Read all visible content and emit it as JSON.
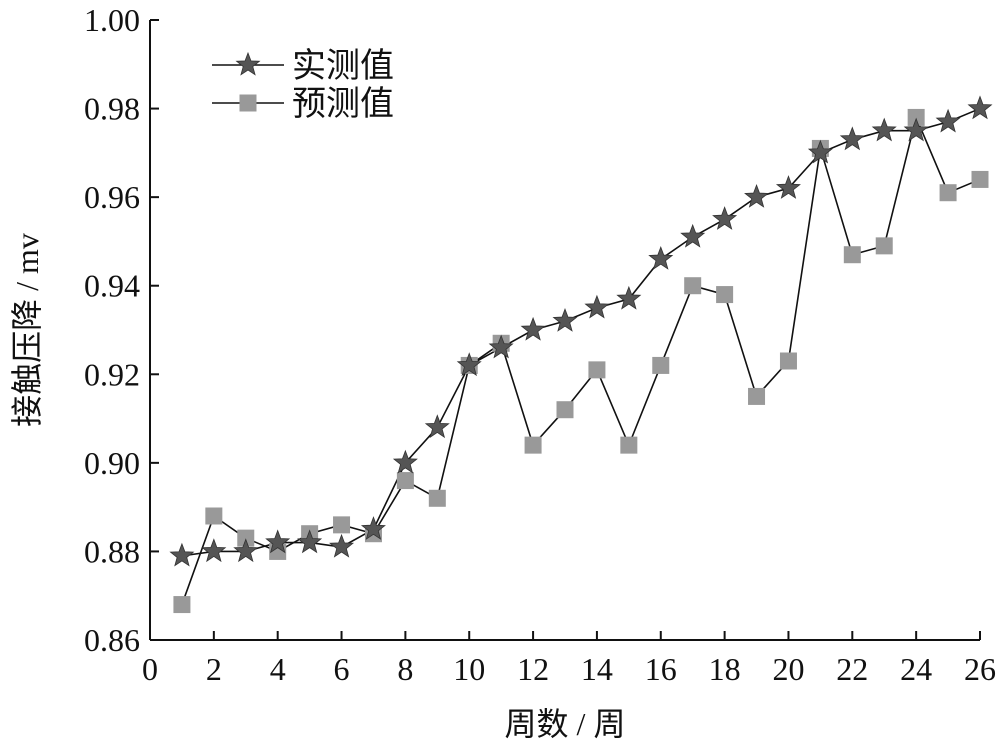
{
  "chart_data": {
    "type": "line",
    "title": "",
    "xlabel": "周数 / 周",
    "ylabel": "接触压降 / mv",
    "xlim": [
      0,
      26
    ],
    "ylim": [
      0.86,
      1.0
    ],
    "x_ticks": [
      0,
      2,
      4,
      6,
      8,
      10,
      12,
      14,
      16,
      18,
      20,
      22,
      24,
      26
    ],
    "y_ticks": [
      "0.86",
      "0.88",
      "0.90",
      "0.92",
      "0.94",
      "0.96",
      "0.98",
      "1.00"
    ],
    "grid": false,
    "legend_position": "top-left",
    "x": [
      1,
      2,
      3,
      4,
      5,
      6,
      7,
      8,
      9,
      10,
      11,
      12,
      13,
      14,
      15,
      16,
      17,
      18,
      19,
      20,
      21,
      22,
      23,
      24,
      25,
      26
    ],
    "series": [
      {
        "name": "实测值",
        "marker": "star",
        "color": "#555555",
        "values": [
          0.879,
          0.88,
          0.88,
          0.882,
          0.882,
          0.881,
          0.885,
          0.9,
          0.908,
          0.922,
          0.926,
          0.93,
          0.932,
          0.935,
          0.937,
          0.946,
          0.951,
          0.955,
          0.96,
          0.962,
          0.97,
          0.973,
          0.975,
          0.975,
          0.977,
          0.98
        ]
      },
      {
        "name": "预测值",
        "marker": "square",
        "color": "#999999",
        "values": [
          0.868,
          0.888,
          0.883,
          0.88,
          0.884,
          0.886,
          0.884,
          0.896,
          0.892,
          0.922,
          0.927,
          0.904,
          0.912,
          0.921,
          0.904,
          0.922,
          0.94,
          0.938,
          0.915,
          0.923,
          0.971,
          0.947,
          0.949,
          0.978,
          0.961,
          0.964
        ]
      }
    ]
  }
}
